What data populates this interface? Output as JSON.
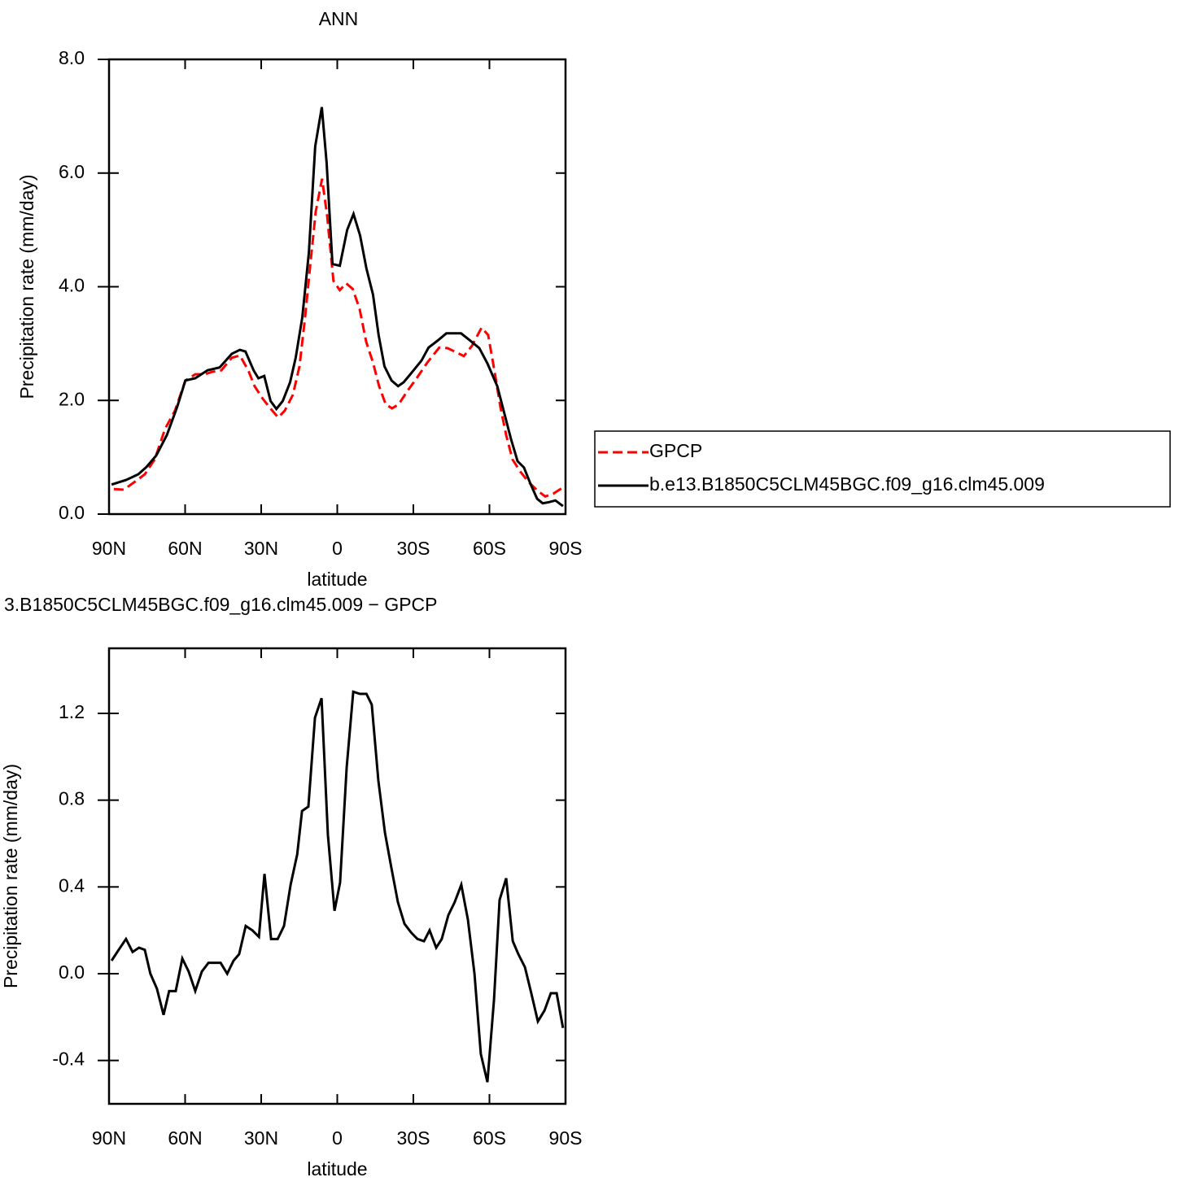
{
  "chart_data": [
    {
      "type": "line",
      "title": "ANN",
      "xlabel": "latitude",
      "ylabel": "Precipitation rate (mm/day)",
      "xlim": [
        90,
        -90
      ],
      "xticks": [
        {
          "value": 90,
          "label": "90N"
        },
        {
          "value": 60,
          "label": "60N"
        },
        {
          "value": 30,
          "label": "30N"
        },
        0,
        {
          "value": -30,
          "label": "30S"
        },
        {
          "value": -60,
          "label": "60S"
        },
        {
          "value": -90,
          "label": "90S"
        }
      ],
      "ylim": [
        0,
        8
      ],
      "yticks": [
        {
          "value": 0,
          "label": "0.0"
        },
        {
          "value": 2,
          "label": "2.0"
        },
        {
          "value": 4,
          "label": "4.0"
        },
        {
          "value": 6,
          "label": "6.0"
        },
        {
          "value": 8,
          "label": "8.0"
        }
      ],
      "legend": "right",
      "series": [
        {
          "name": "GPCP",
          "color": "#ff0000",
          "dash": "dashed",
          "x": [
            88.1,
            84.2,
            80.1,
            75.9,
            72.0,
            67.9,
            64.0,
            59.9,
            56.0,
            52.2,
            49.6,
            45.7,
            41.6,
            38.4,
            35.1,
            32.6,
            29.4,
            26.2,
            23.3,
            20.7,
            17.5,
            14.9,
            12.7,
            10.8,
            8.5,
            6.0,
            4.0,
            1.5,
            -1.0,
            -3.5,
            -6.1,
            -8.8,
            -11.4,
            -14.0,
            -16.5,
            -19.1,
            -21.6,
            -24.2,
            -27.4,
            -31.3,
            -35.4,
            -40.2,
            -43.5,
            -46.7,
            -49.9,
            -53.1,
            -56.9,
            -59.5,
            -62.1,
            -64.3,
            -66.6,
            -69.1,
            -72.3,
            -75.5,
            -78.8,
            -82.0,
            -85.2,
            -89.0
          ],
          "values": [
            0.44,
            0.43,
            0.56,
            0.7,
            0.96,
            1.5,
            1.82,
            2.35,
            2.46,
            2.46,
            2.5,
            2.53,
            2.75,
            2.79,
            2.53,
            2.25,
            2.03,
            1.85,
            1.7,
            1.82,
            2.1,
            2.6,
            3.46,
            4.32,
            5.32,
            5.9,
            5.25,
            4.1,
            3.94,
            4.06,
            3.96,
            3.61,
            3.03,
            2.68,
            2.25,
            1.93,
            1.86,
            1.93,
            2.15,
            2.39,
            2.66,
            2.93,
            2.92,
            2.85,
            2.78,
            2.96,
            3.28,
            3.15,
            2.49,
            1.89,
            1.39,
            0.96,
            0.74,
            0.56,
            0.42,
            0.31,
            0.36,
            0.47
          ]
        },
        {
          "name": "b.e13.B1850C5CLM45BGC.f09_g16.clm45.009",
          "color": "#000000",
          "x": [
            89.0,
            83.3,
            78.5,
            75.2,
            71.4,
            67.2,
            63.1,
            59.9,
            56.0,
            51.2,
            46.4,
            41.6,
            38.4,
            36.2,
            33.0,
            31.1,
            28.8,
            26.3,
            24.0,
            21.5,
            18.6,
            16.4,
            13.8,
            11.2,
            8.7,
            6.1,
            4.2,
            1.9,
            -1.0,
            -3.9,
            -6.4,
            -9.0,
            -11.5,
            -14.1,
            -16.3,
            -18.6,
            -21.4,
            -24.0,
            -26.2,
            -28.8,
            -33.2,
            -36.0,
            -39.8,
            -43.0,
            -48.8,
            -52.2,
            -56.0,
            -59.2,
            -63.1,
            -65.6,
            -68.5,
            -71.1,
            -73.6,
            -76.2,
            -78.8,
            -81.0,
            -83.5,
            -86.0,
            -89.0
          ],
          "values": [
            0.52,
            0.6,
            0.7,
            0.83,
            1.03,
            1.39,
            1.89,
            2.35,
            2.39,
            2.53,
            2.58,
            2.82,
            2.89,
            2.86,
            2.53,
            2.39,
            2.43,
            1.99,
            1.85,
            1.99,
            2.32,
            2.75,
            3.46,
            4.6,
            6.47,
            7.16,
            6.18,
            4.4,
            4.37,
            5.0,
            5.28,
            4.9,
            4.32,
            3.86,
            3.15,
            2.6,
            2.35,
            2.25,
            2.32,
            2.46,
            2.7,
            2.93,
            3.06,
            3.18,
            3.18,
            3.06,
            2.92,
            2.65,
            2.25,
            1.82,
            1.32,
            0.93,
            0.82,
            0.53,
            0.27,
            0.19,
            0.21,
            0.24,
            0.14
          ]
        }
      ]
    },
    {
      "type": "line",
      "title": "3.B1850C5CLM45BGC.f09_g16.clm45.009 − GPCP",
      "xlabel": "latitude",
      "ylabel": "Precipitation rate (mm/day)",
      "xlim": [
        90,
        -90
      ],
      "xticks": [
        {
          "value": 90,
          "label": "90N"
        },
        {
          "value": 60,
          "label": "60N"
        },
        {
          "value": 30,
          "label": "30N"
        },
        0,
        {
          "value": -30,
          "label": "30S"
        },
        {
          "value": -60,
          "label": "60S"
        },
        {
          "value": -90,
          "label": "90S"
        }
      ],
      "ylim": [
        -0.6,
        1.5
      ],
      "yticks": [
        -0.4,
        {
          "value": 0,
          "label": "0.0"
        },
        0.4,
        0.8,
        1.2
      ],
      "series": [
        {
          "color": "#000000",
          "x": [
            89.0,
            86.2,
            83.3,
            80.7,
            78.2,
            75.9,
            73.7,
            71.1,
            68.5,
            66.3,
            63.7,
            61.1,
            58.6,
            56.0,
            53.4,
            50.8,
            48.3,
            46.0,
            43.4,
            40.9,
            38.7,
            36.1,
            33.5,
            30.9,
            28.7,
            26.1,
            23.5,
            21.0,
            18.4,
            15.8,
            13.9,
            11.4,
            8.8,
            6.2,
            3.7,
            1.1,
            -1.1,
            -3.7,
            -6.3,
            -8.9,
            -11.5,
            -13.6,
            -16.2,
            -18.8,
            -21.3,
            -23.9,
            -26.5,
            -29.1,
            -31.6,
            -34.2,
            -36.4,
            -39.0,
            -41.2,
            -43.8,
            -46.3,
            -48.9,
            -51.5,
            -54.1,
            -56.6,
            -59.2,
            -61.8,
            -64.0,
            -66.6,
            -69.2,
            -71.4,
            -74.0,
            -76.5,
            -79.1,
            -81.7,
            -84.2,
            -86.5,
            -89.0
          ],
          "values": [
            0.06,
            0.11,
            0.16,
            0.1,
            0.12,
            0.11,
            0.0,
            -0.07,
            -0.19,
            -0.08,
            -0.08,
            0.07,
            0.01,
            -0.08,
            0.01,
            0.05,
            0.05,
            0.05,
            0.0,
            0.06,
            0.09,
            0.22,
            0.2,
            0.17,
            0.46,
            0.16,
            0.16,
            0.22,
            0.41,
            0.55,
            0.75,
            0.77,
            1.18,
            1.27,
            0.64,
            0.29,
            0.42,
            0.95,
            1.3,
            1.29,
            1.29,
            1.24,
            0.89,
            0.65,
            0.49,
            0.33,
            0.23,
            0.19,
            0.16,
            0.15,
            0.2,
            0.12,
            0.16,
            0.27,
            0.33,
            0.41,
            0.25,
            0.0,
            -0.37,
            -0.5,
            -0.12,
            0.34,
            0.44,
            0.15,
            0.09,
            0.03,
            -0.09,
            -0.22,
            -0.17,
            -0.09,
            -0.09,
            -0.25
          ]
        }
      ]
    }
  ]
}
